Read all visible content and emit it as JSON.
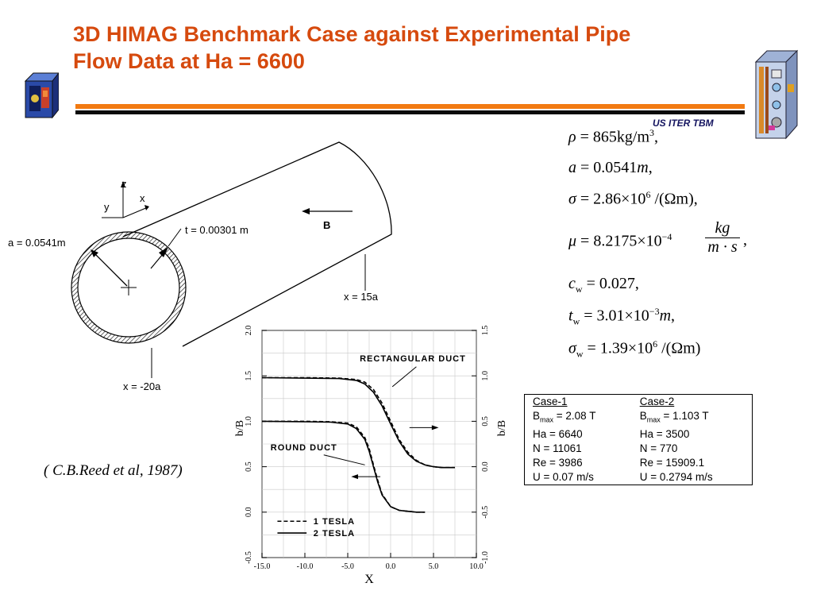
{
  "slide": {
    "title_line1": "3D HIMAG Benchmark Case against Experimental Pipe",
    "title_line2": "Flow Data at Ha = 6600",
    "subtitle": "US ITER TBM",
    "colors": {
      "title": "#d64a0e",
      "rule_orange": "#f27a12",
      "rule_dark": "#0b0b0b",
      "subtitle": "#151560"
    }
  },
  "pipe_diagram": {
    "axis_labels": {
      "z": "z",
      "y": "y",
      "x": "x"
    },
    "radius_label": "a = 0.0541m",
    "thickness_label": "t = 0.00301 m",
    "field_label": "B",
    "end_label": "x = 15a",
    "start_label": "x = -20a"
  },
  "equations": [
    {
      "lhs": "ρ",
      "rhs": "865kg/m",
      "sup": "3",
      "tail": ","
    },
    {
      "lhs": "a",
      "rhs": "0.0541",
      "unit": "m",
      "tail": ","
    },
    {
      "lhs": "σ",
      "rhs": "2.86×10",
      "sup": "6",
      "tail": " /(Ωm),"
    },
    {
      "lhs": "μ",
      "rhs": "8.2175×10",
      "sup": "−4",
      "num": "kg",
      "den": "m · s",
      "tail": ","
    },
    {
      "lhs": "c",
      "sub": "w",
      "rhs": "0.027,"
    },
    {
      "lhs": "t",
      "sub": "w",
      "rhs": "3.01×10",
      "sup": "−3",
      "unit": "m",
      "tail": ","
    },
    {
      "lhs": "σ",
      "sub": "w",
      "rhs": "1.39×10",
      "sup": "6",
      "tail": " /(Ωm)"
    }
  ],
  "cases": {
    "case1": {
      "header": "Case-1",
      "bmax_symbol": "B",
      "bmax_sub": "max",
      "bmax_value": " = 2.08 T",
      "ha": "Ha = 6640",
      "n": "N = 11061",
      "re": "Re = 3986",
      "u": "U = 0.07 m/s"
    },
    "case2": {
      "header": "Case-2",
      "bmax_symbol": "B",
      "bmax_sub": "max",
      "bmax_value": " = 1.103 T",
      "ha": "Ha = 3500",
      "n": "N = 770",
      "re": "Re = 15909.1",
      "u": "U = 0.2794 m/s"
    }
  },
  "citation": "( C.B.Reed et al, 1987)",
  "chart_data": {
    "type": "line",
    "xlabel": "X",
    "ylabel": "b/B",
    "xlim": [
      -15.0,
      10.0
    ],
    "ylim_left": [
      -0.5,
      2.0
    ],
    "ylim_right": [
      -1.0,
      1.5
    ],
    "x_ticks": [
      "-15.0",
      "-10.0",
      "-5.0",
      "0.0",
      "5.0",
      "10.0"
    ],
    "y_ticks_left": [
      "-0.5",
      "0.0",
      "0.5",
      "1.0",
      "1.5",
      "2.0"
    ],
    "y_ticks_right": [
      "-1.0",
      "-0.5",
      "0.0",
      "0.5",
      "1.0",
      "1.5"
    ],
    "annotations": [
      "RECTANGULAR DUCT",
      "ROUND DUCT"
    ],
    "legend": [
      "1 TESLA",
      "2 TESLA"
    ],
    "series": [
      {
        "name": "1 TESLA",
        "group": "RECTANGULAR DUCT",
        "axis": "left",
        "style": "dashed",
        "x": [
          -15,
          -10,
          -6,
          -4,
          -3,
          -2,
          -1,
          0,
          1,
          2,
          3,
          4,
          5,
          6,
          7,
          7.5
        ],
        "y": [
          1.48,
          1.48,
          1.475,
          1.46,
          1.43,
          1.35,
          1.2,
          1.0,
          0.8,
          0.66,
          0.57,
          0.52,
          0.5,
          0.49,
          0.49,
          0.49
        ]
      },
      {
        "name": "2 TESLA",
        "group": "RECTANGULAR DUCT",
        "axis": "left",
        "style": "solid",
        "x": [
          -15,
          -10,
          -6,
          -4,
          -3,
          -2,
          -1,
          0,
          1,
          2,
          3,
          4,
          5,
          6,
          7,
          7.5
        ],
        "y": [
          1.48,
          1.475,
          1.47,
          1.45,
          1.41,
          1.32,
          1.17,
          0.97,
          0.78,
          0.64,
          0.56,
          0.52,
          0.5,
          0.49,
          0.49,
          0.49
        ]
      },
      {
        "name": "1 TESLA",
        "group": "ROUND DUCT",
        "axis": "left",
        "style": "dashed",
        "x": [
          -15,
          -10,
          -7,
          -5,
          -4,
          -3,
          -2.5,
          -2,
          -1.5,
          -1,
          0,
          1,
          2,
          3,
          4
        ],
        "y": [
          1.0,
          1.0,
          0.995,
          0.98,
          0.94,
          0.82,
          0.7,
          0.52,
          0.35,
          0.2,
          0.06,
          0.02,
          0.01,
          0.0,
          0.0
        ]
      },
      {
        "name": "2 TESLA",
        "group": "ROUND DUCT",
        "axis": "left",
        "style": "solid",
        "x": [
          -15,
          -10,
          -7,
          -5,
          -4,
          -3,
          -2.5,
          -2,
          -1.5,
          -1,
          0,
          1,
          2,
          3,
          4
        ],
        "y": [
          1.0,
          0.995,
          0.99,
          0.97,
          0.92,
          0.8,
          0.67,
          0.5,
          0.33,
          0.19,
          0.06,
          0.02,
          0.01,
          0.0,
          0.0
        ]
      }
    ]
  }
}
